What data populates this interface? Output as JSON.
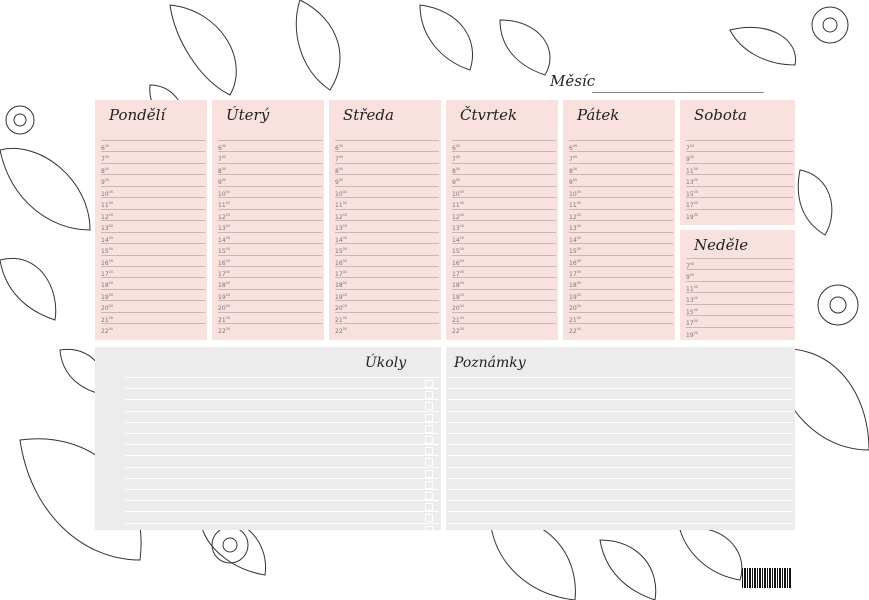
{
  "month_label": "Měsíc",
  "weekdays": [
    {
      "label": "Pondělí"
    },
    {
      "label": "Úterý"
    },
    {
      "label": "Středa"
    },
    {
      "label": "Čtvrtek"
    },
    {
      "label": "Pátek"
    }
  ],
  "weekday_hours": [
    "6",
    "7",
    "8",
    "9",
    "10",
    "11",
    "12",
    "13",
    "14",
    "15",
    "16",
    "17",
    "18",
    "19",
    "20",
    "21",
    "22"
  ],
  "weekend": [
    {
      "label": "Sobota"
    },
    {
      "label": "Neděle"
    }
  ],
  "weekend_hours": [
    "7",
    "9",
    "11",
    "13",
    "15",
    "17",
    "19"
  ],
  "minutes_suffix": "00",
  "tasks": {
    "label": "Úkoly"
  },
  "notes": {
    "label": "Poznámky"
  },
  "colors": {
    "day_panel": "#f9e1df",
    "notes_panel": "#ececec"
  }
}
